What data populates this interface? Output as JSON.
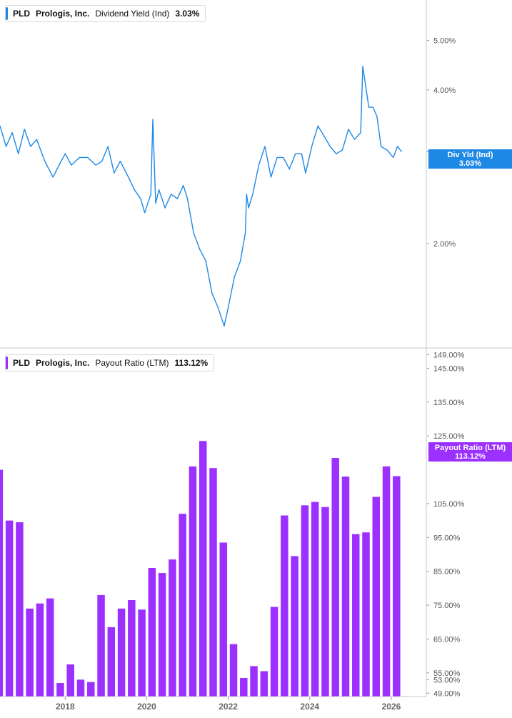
{
  "top_legend": {
    "ticker": "PLD",
    "company": "Prologis, Inc.",
    "metric": "Dividend Yield (Ind)",
    "value": "3.03%",
    "color": "#1e88e5"
  },
  "bottom_legend": {
    "ticker": "PLD",
    "company": "Prologis, Inc.",
    "metric": "Payout Ratio (LTM)",
    "value": "113.12%",
    "color": "#9b30ff"
  },
  "top_tag": {
    "label": "Div Yld (Ind)",
    "value": "3.03%"
  },
  "bottom_tag": {
    "label": "Payout Ratio (LTM)",
    "value": "113.12%"
  },
  "chart_data": [
    {
      "type": "line",
      "series": [
        {
          "name": "Div Yld (Ind)",
          "color": "#1e88e5"
        }
      ],
      "yscale": "log",
      "ylim": [
        1.25,
        6.0
      ],
      "xlim": [
        2016.4,
        2026.65
      ],
      "yticks": [
        2.0,
        4.0,
        5.0
      ],
      "ytick_labels": [
        "2.00%",
        "4.00%",
        "5.00%"
      ],
      "last_value": 3.03,
      "x": [
        2016.4,
        2016.55,
        2016.7,
        2016.85,
        2017.0,
        2017.15,
        2017.3,
        2017.5,
        2017.7,
        2017.85,
        2018.0,
        2018.15,
        2018.35,
        2018.55,
        2018.75,
        2018.9,
        2019.05,
        2019.2,
        2019.35,
        2019.55,
        2019.7,
        2019.85,
        2019.95,
        2020.1,
        2020.15,
        2020.22,
        2020.3,
        2020.45,
        2020.6,
        2020.75,
        2020.9,
        2021.0,
        2021.15,
        2021.3,
        2021.45,
        2021.6,
        2021.75,
        2021.9,
        2022.0,
        2022.15,
        2022.3,
        2022.42,
        2022.45,
        2022.5,
        2022.6,
        2022.75,
        2022.9,
        2023.05,
        2023.2,
        2023.35,
        2023.5,
        2023.65,
        2023.8,
        2023.9,
        2024.05,
        2024.2,
        2024.35,
        2024.5,
        2024.65,
        2024.8,
        2024.95,
        2025.1,
        2025.25,
        2025.3,
        2025.45,
        2025.55,
        2025.65,
        2025.75,
        2025.9,
        2026.05,
        2026.15,
        2026.25
      ],
      "y": [
        3.4,
        3.1,
        3.3,
        3.0,
        3.35,
        3.1,
        3.2,
        2.9,
        2.7,
        2.85,
        3.0,
        2.85,
        2.95,
        2.95,
        2.85,
        2.9,
        3.1,
        2.75,
        2.9,
        2.7,
        2.55,
        2.45,
        2.3,
        2.5,
        3.5,
        2.4,
        2.55,
        2.35,
        2.5,
        2.45,
        2.6,
        2.45,
        2.1,
        1.95,
        1.85,
        1.6,
        1.5,
        1.38,
        1.5,
        1.72,
        1.85,
        2.1,
        2.5,
        2.35,
        2.5,
        2.85,
        3.1,
        2.7,
        2.95,
        2.95,
        2.8,
        3.0,
        3.0,
        2.75,
        3.1,
        3.4,
        3.25,
        3.1,
        3.0,
        3.05,
        3.35,
        3.2,
        3.3,
        4.45,
        3.7,
        3.7,
        3.55,
        3.1,
        3.05,
        2.95,
        3.1,
        3.03
      ]
    },
    {
      "type": "bar",
      "series": [
        {
          "name": "Payout Ratio (LTM)",
          "color": "#9b30ff"
        }
      ],
      "ylim": [
        48,
        151
      ],
      "xlim": [
        2016.4,
        2026.65
      ],
      "yticks": [
        49,
        53,
        55,
        65,
        75,
        85,
        95,
        105,
        125,
        135,
        145,
        149
      ],
      "ytick_labels": [
        "49.00%",
        "53.00%",
        "55.00%",
        "65.00%",
        "75.00%",
        "85.00%",
        "95.00%",
        "105.00%",
        "125.00%",
        "135.00%",
        "145.00%",
        "149.00%"
      ],
      "last_value": 113.12,
      "x": [
        2016.38,
        2016.63,
        2016.88,
        2017.13,
        2017.38,
        2017.63,
        2017.88,
        2018.13,
        2018.38,
        2018.63,
        2018.88,
        2019.13,
        2019.38,
        2019.63,
        2019.88,
        2020.13,
        2020.38,
        2020.63,
        2020.88,
        2021.13,
        2021.38,
        2021.63,
        2021.88,
        2022.13,
        2022.38,
        2022.63,
        2022.88,
        2023.13,
        2023.38,
        2023.63,
        2023.88,
        2024.13,
        2024.38,
        2024.63,
        2024.88,
        2025.13,
        2025.38,
        2025.63,
        2025.88,
        2026.13
      ],
      "values": [
        115,
        100,
        99.5,
        74,
        75.5,
        77,
        52,
        57.5,
        53,
        52.3,
        78,
        68.5,
        74,
        76.5,
        73.7,
        86,
        84.5,
        88.5,
        102,
        116,
        123.5,
        115.5,
        93.5,
        63.5,
        53.5,
        57,
        55.5,
        74.5,
        101.5,
        89.5,
        104.5,
        105.5,
        104,
        118.5,
        113,
        96,
        96.5,
        107,
        116,
        113.12
      ]
    }
  ],
  "x_axis": {
    "tick_labels": [
      "2018",
      "2020",
      "2022",
      "2024",
      "2026"
    ],
    "tick_values": [
      2018,
      2020,
      2022,
      2024,
      2026
    ]
  }
}
